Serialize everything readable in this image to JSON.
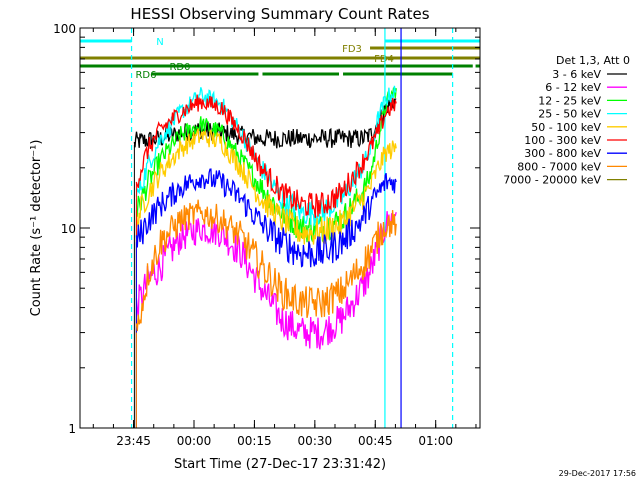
{
  "chart_data": {
    "type": "line",
    "title": "HESSI Observing Summary Count Rates",
    "xlabel": "Start Time (27-Dec-17 23:31:42)",
    "ylabel": "Count Rate (s⁻¹ detector⁻¹)",
    "y_scale": "log",
    "ylim": [
      1,
      100
    ],
    "x_unit": "minutes since 23:31:42",
    "xlim": [
      0,
      99.3
    ],
    "x_ticks": [
      {
        "x": 13.3,
        "label": "23:45"
      },
      {
        "x": 28.3,
        "label": "00:00"
      },
      {
        "x": 43.3,
        "label": "00:15"
      },
      {
        "x": 58.3,
        "label": "00:30"
      },
      {
        "x": 73.3,
        "label": "00:45"
      },
      {
        "x": 88.3,
        "label": "01:00"
      }
    ],
    "y_ticks": [
      {
        "y": 1,
        "label": "1"
      },
      {
        "y": 10,
        "label": "10"
      },
      {
        "y": 100,
        "label": "100"
      }
    ],
    "legend_title": "Det 1,3, Att 0",
    "legend_position": "right, outside plot",
    "series": [
      {
        "name": "3 - 6 keV",
        "color": "#000000",
        "x": [
          13.5,
          13.8,
          20,
          25,
          30,
          35,
          40,
          45,
          50,
          55,
          60,
          65,
          70,
          72,
          74,
          76,
          78.5
        ],
        "y": [
          26,
          27,
          28,
          30,
          31,
          30,
          29,
          28,
          28,
          28,
          28,
          28,
          28,
          29,
          34,
          40,
          44
        ]
      },
      {
        "name": "6 - 12 keV",
        "color": "#ff00ff",
        "x": [
          14,
          17,
          20,
          25,
          30,
          35,
          40,
          45,
          50,
          55,
          60,
          65,
          70,
          72,
          74,
          76,
          78.5
        ],
        "y": [
          4.0,
          5.5,
          6.5,
          9,
          10,
          9.5,
          7.5,
          5.0,
          3.5,
          3.0,
          3.0,
          3.5,
          5.0,
          6.0,
          8,
          10.5,
          12
        ]
      },
      {
        "name": "12 - 25 keV",
        "color": "#00ff00",
        "x": [
          14,
          17,
          20,
          25,
          30,
          35,
          40,
          45,
          50,
          55,
          60,
          65,
          70,
          72,
          74,
          76,
          78.5
        ],
        "y": [
          12,
          17,
          22,
          29,
          33,
          30,
          22,
          16,
          12,
          10,
          10,
          11,
          15,
          18,
          28,
          42,
          50
        ]
      },
      {
        "name": "25 - 50 keV",
        "color": "#00ffff",
        "x": [
          14,
          17,
          20,
          25,
          30,
          35,
          40,
          45,
          50,
          55,
          60,
          65,
          70,
          72,
          74,
          76,
          78.5
        ],
        "y": [
          14,
          21,
          28,
          38,
          46,
          42,
          30,
          20,
          14,
          12,
          12,
          14,
          20,
          24,
          35,
          45,
          48
        ]
      },
      {
        "name": "50 - 100 keV",
        "color": "#ffcc00",
        "x": [
          14,
          17,
          20,
          25,
          30,
          35,
          40,
          45,
          50,
          55,
          60,
          65,
          70,
          72,
          74,
          76,
          78.5
        ],
        "y": [
          11,
          15,
          19,
          25,
          29,
          27,
          20,
          14,
          11,
          9.5,
          9.5,
          10.5,
          14,
          16,
          20,
          24,
          25
        ]
      },
      {
        "name": "100 - 300 keV",
        "color": "#ff0000",
        "x": [
          14,
          17,
          20,
          25,
          30,
          35,
          40,
          45,
          50,
          55,
          60,
          65,
          70,
          72,
          74,
          76,
          78.5
        ],
        "y": [
          17,
          25,
          31,
          38,
          43,
          40,
          30,
          20,
          15,
          13,
          13,
          15,
          21,
          25,
          30,
          38,
          42
        ]
      },
      {
        "name": "300 - 800 keV",
        "color": "#0000ff",
        "x": [
          14,
          17,
          20,
          25,
          30,
          35,
          40,
          45,
          50,
          55,
          60,
          65,
          70,
          72,
          74,
          76,
          78.5
        ],
        "y": [
          8.5,
          11,
          13,
          16,
          18,
          17,
          14,
          10.5,
          8.5,
          7.5,
          7.5,
          8.5,
          11,
          13,
          15,
          17,
          17
        ]
      },
      {
        "name": "800 - 7000 keV",
        "color": "#ff8800",
        "x": [
          14,
          17,
          20,
          25,
          30,
          35,
          40,
          45,
          50,
          55,
          60,
          65,
          70,
          72,
          74,
          76,
          78.5
        ],
        "y": [
          3.0,
          6.0,
          8.5,
          11,
          12,
          11,
          9,
          6.5,
          4.8,
          4.2,
          4.2,
          4.8,
          6.5,
          7.5,
          9,
          10.5,
          10.5
        ]
      },
      {
        "name": "7000 - 20000 keV",
        "color": "#808000",
        "x": [],
        "y": []
      }
    ],
    "flags": [
      {
        "label": "N",
        "color": "#00ffff",
        "label_color": "#00ffff",
        "segments": [
          [
            0,
            12.8
          ],
          [
            75.7,
            99.3
          ]
        ]
      },
      {
        "label": "FD3",
        "color": "#808000",
        "label_color": "#808000",
        "segments": [
          [
            72,
            99.3
          ]
        ]
      },
      {
        "label": "FD4",
        "color": "#808000",
        "label_color": "#808000",
        "segments": [
          [
            0,
            99.3
          ]
        ]
      },
      {
        "label": "RD0",
        "color": "#008000",
        "label_color": "#008000",
        "segments": [
          [
            0,
            97.5
          ],
          [
            98.2,
            99.3
          ]
        ]
      },
      {
        "label": "RD6",
        "color": "#008000",
        "label_color": "#008000",
        "segments": [
          [
            17.8,
            44.3
          ],
          [
            45.3,
            64.3
          ],
          [
            65.3,
            92.5
          ]
        ]
      }
    ],
    "vertical_markers": [
      {
        "x": 12.8,
        "color": "#00ffff",
        "style": "dashed"
      },
      {
        "x": 75.7,
        "color": "#00ffff",
        "style": "solid"
      },
      {
        "x": 79.7,
        "color": "#0000ff",
        "style": "solid"
      },
      {
        "x": 92.5,
        "color": "#00ffff",
        "style": "dashed"
      }
    ]
  },
  "footer": {
    "timestamp": "29-Dec-2017 17:56"
  }
}
